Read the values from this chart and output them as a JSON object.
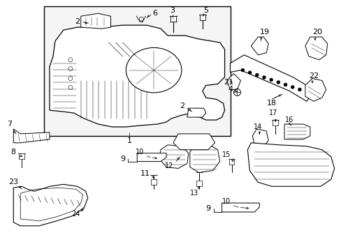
{
  "background_color": "#ffffff",
  "line_color": "#000000",
  "text_color": "#000000",
  "fig_width": 4.89,
  "fig_height": 3.6,
  "dpi": 100,
  "lw_main": 0.8,
  "lw_thin": 0.4,
  "lw_thick": 1.0,
  "fontsize_label": 7.5,
  "gray_fill": "#d8d8d8"
}
